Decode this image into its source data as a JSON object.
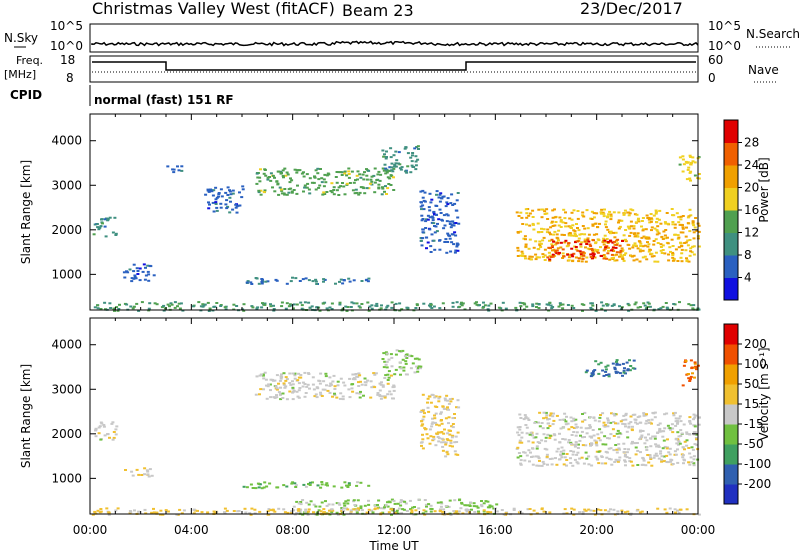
{
  "header": {
    "station": "Christmas Valley West (fitACF)",
    "beam": "Beam 23",
    "date": "23/Dec/2017"
  },
  "side_labels": {
    "nsky": "N.Sky",
    "freq": "Freq.",
    "freq_unit": "[MHz]",
    "cpid": "CPID",
    "nsearch": "N.Search",
    "nave": "Nave",
    "nsky_ticks": [
      "10^5",
      "10^0"
    ],
    "nsearch_ticks": [
      "10^5",
      "10^0"
    ],
    "freq_ticks": [
      "18",
      "8"
    ],
    "nave_ticks": [
      "60",
      "0"
    ]
  },
  "cpid_text": "normal (fast) 151 RF",
  "colors": {
    "power_scale": [
      "#1010e0",
      "#2a60c0",
      "#3f9080",
      "#50a050",
      "#f0d020",
      "#f0a000",
      "#f06000",
      "#e00000"
    ],
    "velocity_scale": [
      "#e00000",
      "#f05000",
      "#f0a000",
      "#f0c030",
      "#c8c8c8",
      "#70c040",
      "#40a060",
      "#3060b0",
      "#2030c0"
    ]
  },
  "chart_data": [
    {
      "type": "heatmap",
      "name": "power",
      "xlabel": "",
      "ylabel": "Slant Range [km]",
      "yticks": [
        "1000",
        "2000",
        "3000",
        "4000"
      ],
      "ylim": [
        200,
        4600
      ],
      "colorbar_label": "Power [dB]",
      "colorbar_ticks": [
        "4",
        "8",
        "12",
        "16",
        "20",
        "24",
        "28"
      ],
      "clim": [
        0,
        32
      ],
      "patches": [
        {
          "t0": 0.1,
          "t1": 1.0,
          "r0": 1850,
          "r1": 2300,
          "v": 10
        },
        {
          "t0": 1.3,
          "t1": 2.5,
          "r0": 850,
          "r1": 1250,
          "v": 6
        },
        {
          "t0": 3.0,
          "t1": 3.8,
          "r0": 3300,
          "r1": 3450,
          "v": 6
        },
        {
          "t0": 4.5,
          "t1": 6.0,
          "r0": 2400,
          "r1": 3000,
          "v": 6
        },
        {
          "t0": 6.5,
          "t1": 12.0,
          "r0": 2800,
          "r1": 3400,
          "v": 14
        },
        {
          "t0": 6.0,
          "t1": 11.0,
          "r0": 800,
          "r1": 950,
          "v": 8
        },
        {
          "t0": 11.5,
          "t1": 13.0,
          "r0": 3300,
          "r1": 3900,
          "v": 10
        },
        {
          "t0": 13.0,
          "t1": 14.5,
          "r0": 1500,
          "r1": 2900,
          "v": 6
        },
        {
          "t0": 16.8,
          "t1": 24.0,
          "r0": 1300,
          "r1": 2500,
          "v": 20
        },
        {
          "t0": 18.0,
          "t1": 21.0,
          "r0": 1350,
          "r1": 1800,
          "v": 28
        },
        {
          "t0": 23.2,
          "t1": 24.0,
          "r0": 3100,
          "r1": 3700,
          "v": 18
        },
        {
          "t0": 0.0,
          "t1": 24.0,
          "r0": 200,
          "r1": 400,
          "v": 12
        }
      ]
    },
    {
      "type": "heatmap",
      "name": "velocity",
      "xlabel": "Time UT",
      "ylabel": "Slant Range [km]",
      "yticks": [
        "1000",
        "2000",
        "3000",
        "4000"
      ],
      "ylim": [
        200,
        4600
      ],
      "xticks": [
        "00:00",
        "04:00",
        "08:00",
        "12:00",
        "16:00",
        "20:00",
        "00:00"
      ],
      "xlim": [
        0,
        24
      ],
      "colorbar_label": "Velocity [m s⁻¹]",
      "colorbar_ticks": [
        "200",
        "100",
        "50",
        "15",
        "-15",
        "-50",
        "-100",
        "-200"
      ],
      "clim": [
        -250,
        250
      ],
      "patches": [
        {
          "t0": 0.1,
          "t1": 1.0,
          "r0": 1850,
          "r1": 2300,
          "v": 0
        },
        {
          "t0": 1.3,
          "t1": 2.5,
          "r0": 1050,
          "r1": 1250,
          "v": 40
        },
        {
          "t0": 6.5,
          "t1": 12.0,
          "r0": 2800,
          "r1": 3400,
          "v": 0
        },
        {
          "t0": 6.0,
          "t1": 11.0,
          "r0": 800,
          "r1": 950,
          "v": -60
        },
        {
          "t0": 11.5,
          "t1": 13.0,
          "r0": 3300,
          "r1": 3900,
          "v": -40
        },
        {
          "t0": 13.0,
          "t1": 14.5,
          "r0": 1500,
          "r1": 2900,
          "v": 40
        },
        {
          "t0": 16.8,
          "t1": 24.0,
          "r0": 1300,
          "r1": 2500,
          "v": 0
        },
        {
          "t0": 19.5,
          "t1": 21.5,
          "r0": 3300,
          "r1": 3700,
          "v": -150
        },
        {
          "t0": 23.3,
          "t1": 24.0,
          "r0": 3100,
          "r1": 3700,
          "v": 150
        },
        {
          "t0": 8.0,
          "t1": 16.0,
          "r0": 200,
          "r1": 550,
          "v": -40
        },
        {
          "t0": 0.0,
          "t1": 24.0,
          "r0": 200,
          "r1": 350,
          "v": 40
        }
      ]
    }
  ]
}
